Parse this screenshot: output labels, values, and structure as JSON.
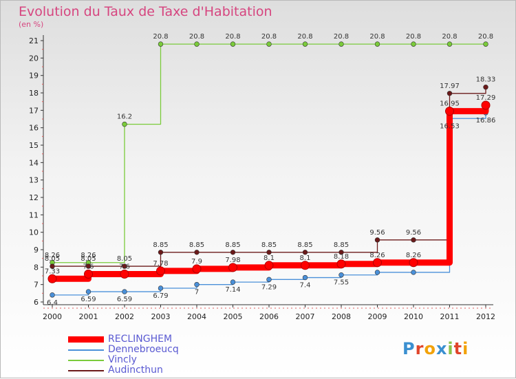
{
  "header": {
    "title": "Evolution du Taux de Taxe d'Habitation",
    "subtitle": "(en %)"
  },
  "logo": {
    "text": "Proxiti",
    "letters": [
      "P",
      "r",
      "o",
      "x",
      "i",
      "t",
      "i"
    ],
    "colors": [
      "#3a8fd0",
      "#e0452b",
      "#f2a20a",
      "#3a8fd0",
      "#8bc34a",
      "#e0452b",
      "#f2a20a"
    ]
  },
  "chart_data": {
    "type": "line",
    "title": "Evolution du Taux de Taxe d'Habitation",
    "ylabel": "(en %)",
    "xlabel": "",
    "x": [
      "2000",
      "2001",
      "2002",
      "2003",
      "2004",
      "2005",
      "2006",
      "2007",
      "2008",
      "2009",
      "2010",
      "2011",
      "2012"
    ],
    "ylim": [
      6,
      21
    ],
    "yticks": [
      6,
      7,
      8,
      9,
      10,
      11,
      12,
      13,
      14,
      15,
      16,
      17,
      18,
      19,
      20,
      21
    ],
    "series": [
      {
        "name": "RECLINGHEM",
        "color": "#ff0000",
        "values": [
          7.33,
          7.6,
          7.6,
          7.78,
          7.9,
          7.98,
          8.1,
          8.1,
          8.18,
          8.26,
          8.26,
          16.95,
          17.29
        ],
        "labels": [
          "7.33",
          "7.6",
          "7.6",
          "7.78",
          "7.9",
          "7.98",
          "8.1",
          "8.1",
          "8.18",
          "8.26",
          "8.26",
          "16.95",
          "17.29"
        ]
      },
      {
        "name": "Dennebroeucq",
        "color": "#4a90d9",
        "values": [
          6.4,
          6.59,
          6.59,
          6.79,
          7.0,
          7.14,
          7.29,
          7.4,
          7.55,
          7.7,
          7.7,
          16.53,
          16.86
        ],
        "labels": [
          "6.4",
          "6.59",
          "6.59",
          "6.79",
          "7",
          "7.14",
          "7.29",
          "7.4",
          "7.55",
          "",
          "",
          "16.53",
          "16.86"
        ]
      },
      {
        "name": "Vincly",
        "color": "#7acb3a",
        "values": [
          8.26,
          8.26,
          16.2,
          20.8,
          20.8,
          20.8,
          20.8,
          20.8,
          20.8,
          20.8,
          20.8,
          20.8,
          20.8
        ],
        "labels": [
          "8.26",
          "8.26",
          "16.2",
          "20.8",
          "20.8",
          "20.8",
          "20.8",
          "20.8",
          "20.8",
          "20.8",
          "20.8",
          "20.8",
          "20.8"
        ]
      },
      {
        "name": "Audincthun",
        "color": "#6b1a1a",
        "values": [
          8.05,
          8.05,
          8.05,
          8.85,
          8.85,
          8.85,
          8.85,
          8.85,
          8.85,
          9.56,
          9.56,
          17.97,
          18.33
        ],
        "labels": [
          "8.05",
          "8.05",
          "8.05",
          "8.85",
          "8.85",
          "8.85",
          "8.85",
          "8.85",
          "8.85",
          "9.56",
          "9.56",
          "17.97",
          "18.33"
        ]
      }
    ],
    "grid": false,
    "legend_position": "bottom-left"
  }
}
